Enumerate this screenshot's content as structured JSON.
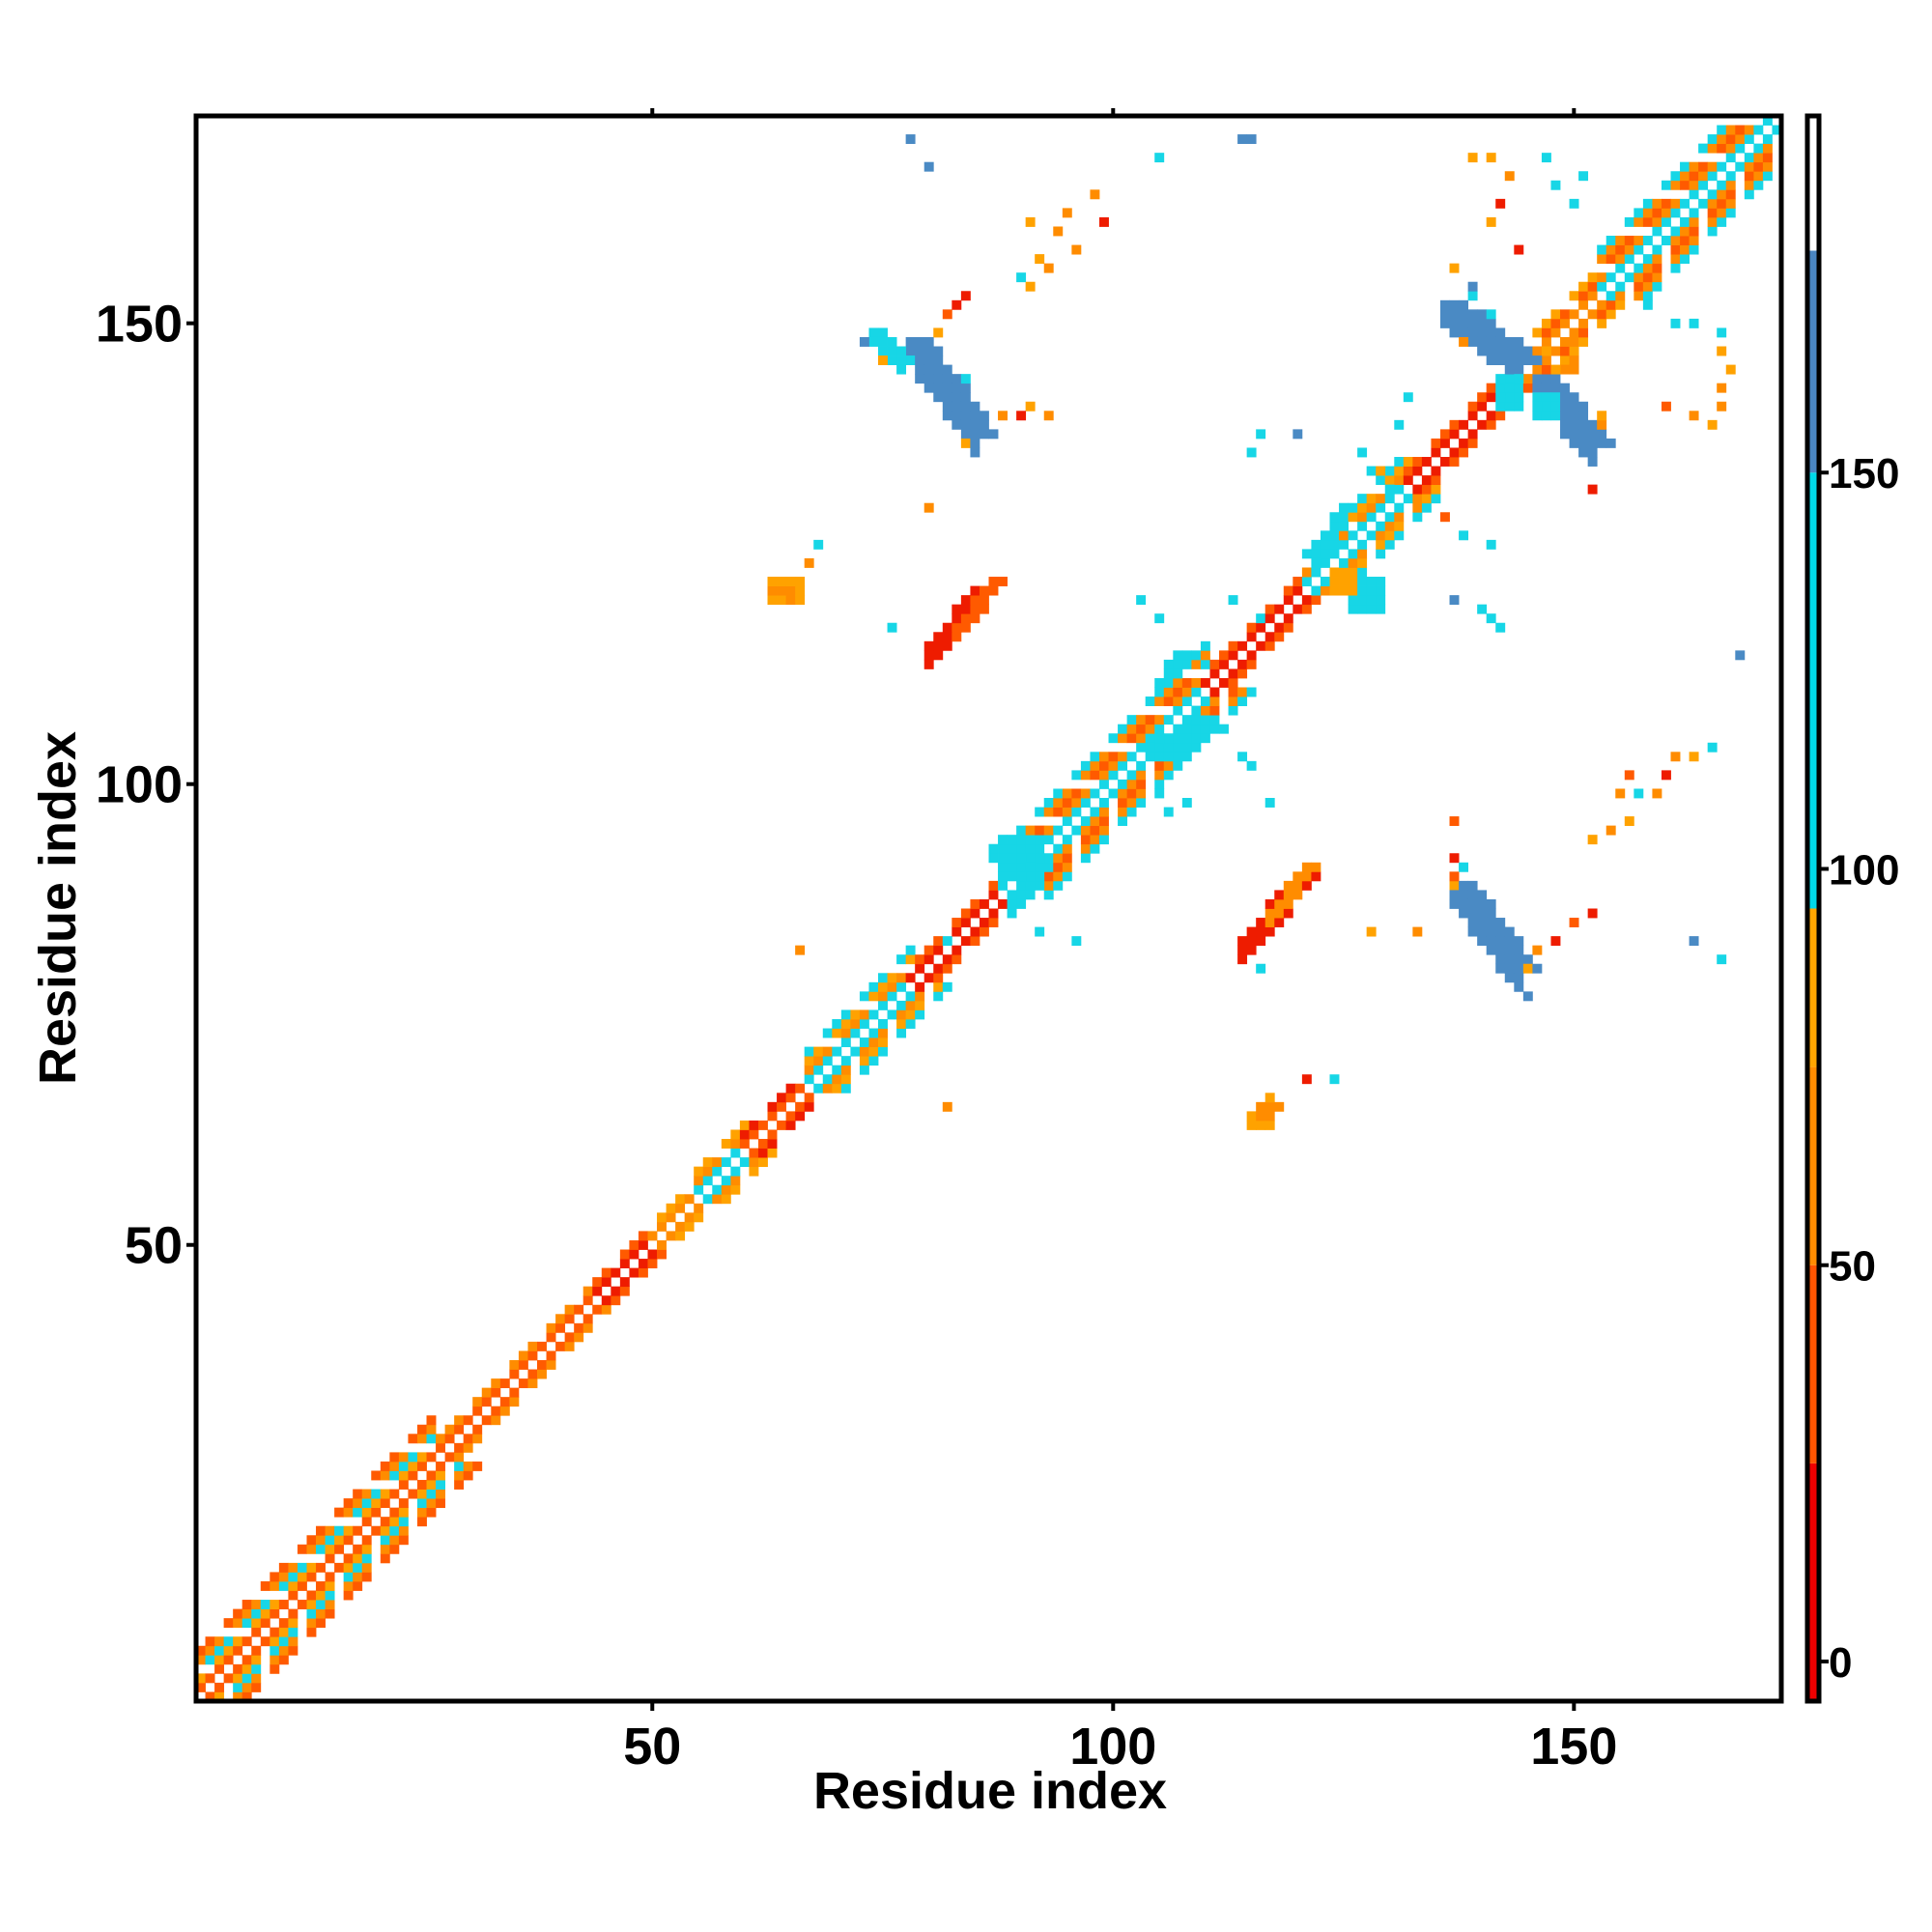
{
  "chart_data": {
    "type": "heatmap",
    "title": "",
    "xlabel": "Residue index",
    "ylabel": "Residue index",
    "xlim": [
      1,
      172
    ],
    "ylim": [
      1,
      172
    ],
    "xticks": [
      50,
      100,
      150
    ],
    "yticks": [
      50,
      100,
      150
    ],
    "colorbar": {
      "ticks": [
        0,
        50,
        100,
        150
      ],
      "range": [
        -5,
        195
      ],
      "bands": [
        {
          "from": -5,
          "to": 25,
          "color": "#ee0000"
        },
        {
          "from": 25,
          "to": 50,
          "color": "#ff5500"
        },
        {
          "from": 50,
          "to": 75,
          "color": "#ff8c00"
        },
        {
          "from": 75,
          "to": 95,
          "color": "#ffa500"
        },
        {
          "from": 95,
          "to": 150,
          "color": "#00d8e8"
        },
        {
          "from": 150,
          "to": 178,
          "color": "#4a86c2"
        },
        {
          "from": 178,
          "to": 195,
          "color": "#ffffff"
        }
      ]
    },
    "palette": {
      "red": "#ee1c00",
      "orange_red": "#ff5a00",
      "orange": "#ff8c00",
      "light_orange": "#ffa200",
      "cyan": "#17d6e6",
      "steel_blue": "#4a8ac4"
    },
    "diagonal_segments": [
      {
        "from": 1,
        "to": 26,
        "width": 5,
        "pattern": [
          "orange_red",
          "light_orange",
          "cyan",
          "orange",
          "orange_red"
        ]
      },
      {
        "from": 26,
        "to": 44,
        "width": 2,
        "pattern": [
          "orange_red",
          "orange"
        ]
      },
      {
        "from": 44,
        "to": 50,
        "width": 2,
        "pattern": [
          "red",
          "orange_red"
        ]
      },
      {
        "from": 50,
        "to": 55,
        "width": 2,
        "pattern": [
          "orange",
          "light_orange"
        ]
      },
      {
        "from": 55,
        "to": 60,
        "width": 3,
        "pattern": [
          "cyan",
          "orange",
          "light_orange"
        ]
      },
      {
        "from": 60,
        "to": 67,
        "width": 2,
        "pattern": [
          "orange_red",
          "red"
        ]
      },
      {
        "from": 67,
        "to": 78,
        "width": 4,
        "pattern": [
          "cyan",
          "orange",
          "light_orange",
          "cyan"
        ]
      },
      {
        "from": 78,
        "to": 88,
        "width": 2,
        "pattern": [
          "red",
          "orange_red"
        ]
      },
      {
        "from": 88,
        "to": 110,
        "width": 5,
        "pattern": [
          "cyan",
          "orange",
          "orange_red",
          "orange",
          "cyan"
        ]
      },
      {
        "from": 110,
        "to": 121,
        "width": 2,
        "pattern": [
          "red",
          "orange_red"
        ]
      },
      {
        "from": 121,
        "to": 132,
        "width": 4,
        "pattern": [
          "cyan",
          "orange",
          "light_orange",
          "cyan"
        ]
      },
      {
        "from": 132,
        "to": 144,
        "width": 2,
        "pattern": [
          "red",
          "orange_red"
        ]
      },
      {
        "from": 144,
        "to": 153,
        "width": 3,
        "pattern": [
          "orange",
          "orange_red",
          "light_orange"
        ]
      },
      {
        "from": 153,
        "to": 172,
        "width": 5,
        "pattern": [
          "cyan",
          "orange",
          "orange_red",
          "orange",
          "cyan"
        ]
      }
    ],
    "contact_strips": [
      {
        "start": [
          78,
          148
        ],
        "end": [
          85,
          138
        ],
        "width": 3,
        "color": "steel_blue"
      },
      {
        "start": [
          74,
          149
        ],
        "end": [
          77,
          146
        ],
        "width": 2,
        "color": "cyan"
      },
      {
        "start": [
          136,
          152
        ],
        "end": [
          144,
          146
        ],
        "width": 3,
        "color": "steel_blue"
      },
      {
        "start": [
          146,
          144
        ],
        "end": [
          152,
          137
        ],
        "width": 3,
        "color": "steel_blue"
      },
      {
        "start": [
          137,
          89
        ],
        "end": [
          144,
          80
        ],
        "width": 3,
        "color": "steel_blue"
      },
      {
        "start": [
          80,
          115
        ],
        "end": [
          85,
          121
        ],
        "width": 3,
        "color": "red"
      },
      {
        "start": [
          83,
          117
        ],
        "end": [
          87,
          122
        ],
        "width": 2,
        "color": "orange_red"
      },
      {
        "start": [
          114,
          83
        ],
        "end": [
          120,
          90
        ],
        "width": 3,
        "color": "red"
      },
      {
        "start": [
          117,
          86
        ],
        "end": [
          121,
          91
        ],
        "width": 2,
        "color": "orange"
      },
      {
        "start": [
          89,
          88
        ],
        "end": [
          91,
          92
        ],
        "width": 3,
        "color": "cyan"
      },
      {
        "start": [
          105,
          111
        ],
        "end": [
          107,
          114
        ],
        "width": 2,
        "color": "cyan"
      },
      {
        "start": [
          122,
          125
        ],
        "end": [
          125,
          130
        ],
        "width": 2,
        "color": "cyan"
      }
    ],
    "scatter_cells": [
      [
        78,
        170,
        "steel_blue"
      ],
      [
        80,
        167,
        "steel_blue"
      ],
      [
        114,
        170,
        "steel_blue"
      ],
      [
        115,
        170,
        "steel_blue"
      ],
      [
        98,
        164,
        "orange"
      ],
      [
        105,
        168,
        "cyan"
      ],
      [
        95,
        162,
        "orange"
      ],
      [
        99,
        161,
        "red"
      ],
      [
        91,
        161,
        "light_orange"
      ],
      [
        94,
        160,
        "orange"
      ],
      [
        92,
        157,
        "light_orange"
      ],
      [
        96,
        158,
        "orange"
      ],
      [
        90,
        155,
        "cyan"
      ],
      [
        93,
        156,
        "orange"
      ],
      [
        91,
        154,
        "light_orange"
      ],
      [
        84,
        153,
        "red"
      ],
      [
        83,
        152,
        "red"
      ],
      [
        82,
        151,
        "orange_red"
      ],
      [
        81,
        149,
        "light_orange"
      ],
      [
        73,
        148,
        "steel_blue"
      ],
      [
        75,
        146,
        "light_orange"
      ],
      [
        84,
        144,
        "cyan"
      ],
      [
        91,
        141,
        "light_orange"
      ],
      [
        90,
        140,
        "red"
      ],
      [
        93,
        140,
        "orange"
      ],
      [
        88,
        140,
        "orange"
      ],
      [
        84,
        137,
        "light_orange"
      ],
      [
        68,
        126,
        "cyan"
      ],
      [
        67,
        124,
        "orange"
      ],
      [
        63,
        121,
        "orange"
      ],
      [
        64,
        120,
        "light_orange"
      ],
      [
        65,
        120,
        "orange"
      ],
      [
        76,
        117,
        "cyan"
      ],
      [
        80,
        130,
        "orange"
      ],
      [
        103,
        120,
        "cyan"
      ],
      [
        105,
        118,
        "cyan"
      ],
      [
        66,
        82,
        "orange"
      ],
      [
        82,
        83,
        "cyan"
      ],
      [
        92,
        84,
        "cyan"
      ],
      [
        96,
        83,
        "cyan"
      ],
      [
        82,
        65,
        "orange"
      ],
      [
        117,
        66,
        "light_orange"
      ],
      [
        118,
        65,
        "orange"
      ],
      [
        121,
        68,
        "red"
      ],
      [
        124,
        68,
        "cyan"
      ],
      [
        128,
        84,
        "light_orange"
      ],
      [
        133,
        84,
        "orange"
      ],
      [
        116,
        80,
        "cyan"
      ],
      [
        137,
        92,
        "red"
      ],
      [
        137,
        90,
        "orange_red"
      ],
      [
        137,
        89,
        "light_orange"
      ],
      [
        138,
        91,
        "cyan"
      ],
      [
        137,
        96,
        "orange_red"
      ],
      [
        145,
        80,
        "light_orange"
      ],
      [
        146,
        82,
        "orange"
      ],
      [
        148,
        83,
        "red"
      ],
      [
        150,
        85,
        "orange_red"
      ],
      [
        152,
        86,
        "red"
      ],
      [
        145,
        77,
        "steel_blue"
      ],
      [
        163,
        83,
        "steel_blue"
      ],
      [
        166,
        81,
        "cyan"
      ],
      [
        152,
        94,
        "light_orange"
      ],
      [
        154,
        95,
        "orange"
      ],
      [
        156,
        96,
        "light_orange"
      ],
      [
        155,
        99,
        "orange"
      ],
      [
        156,
        101,
        "orange_red"
      ],
      [
        157,
        99,
        "cyan"
      ],
      [
        159,
        99,
        "orange"
      ],
      [
        160,
        101,
        "red"
      ],
      [
        161,
        103,
        "orange"
      ],
      [
        163,
        103,
        "light_orange"
      ],
      [
        165,
        104,
        "cyan"
      ],
      [
        168,
        114,
        "steel_blue"
      ],
      [
        140,
        119,
        "cyan"
      ],
      [
        141,
        118,
        "cyan"
      ],
      [
        137,
        120,
        "steel_blue"
      ],
      [
        142,
        117,
        "cyan"
      ],
      [
        136,
        129,
        "cyan"
      ],
      [
        138,
        127,
        "cyan"
      ],
      [
        141,
        126,
        "cyan"
      ],
      [
        115,
        136,
        "cyan"
      ],
      [
        116,
        138,
        "cyan"
      ],
      [
        120,
        138,
        "steel_blue"
      ],
      [
        127,
        136,
        "orange"
      ],
      [
        128,
        134,
        "cyan"
      ],
      [
        116,
        118,
        "cyan"
      ],
      [
        113,
        120,
        "cyan"
      ],
      [
        110,
        113,
        "cyan"
      ],
      [
        112,
        106,
        "cyan"
      ],
      [
        114,
        103,
        "cyan"
      ],
      [
        115,
        102,
        "cyan"
      ],
      [
        117,
        98,
        "cyan"
      ],
      [
        107,
        103,
        "cyan"
      ],
      [
        109,
        105,
        "cyan"
      ],
      [
        137,
        156,
        "light_orange"
      ],
      [
        139,
        153,
        "cyan"
      ],
      [
        138,
        148,
        "orange"
      ],
      [
        141,
        151,
        "cyan"
      ],
      [
        139,
        154,
        "steel_blue"
      ],
      [
        144,
        158,
        "red"
      ],
      [
        141,
        161,
        "light_orange"
      ],
      [
        142,
        163,
        "red"
      ],
      [
        143,
        166,
        "orange"
      ],
      [
        139,
        168,
        "light_orange"
      ],
      [
        141,
        168,
        "light_orange"
      ],
      [
        147,
        168,
        "cyan"
      ],
      [
        148,
        165,
        "cyan"
      ],
      [
        150,
        163,
        "cyan"
      ],
      [
        151,
        166,
        "cyan"
      ],
      [
        153,
        139,
        "orange"
      ],
      [
        153,
        140,
        "light_orange"
      ],
      [
        152,
        132,
        "red"
      ],
      [
        158,
        152,
        "cyan"
      ],
      [
        161,
        150,
        "cyan"
      ],
      [
        163,
        150,
        "cyan"
      ],
      [
        160,
        141,
        "orange_red"
      ],
      [
        163,
        140,
        "orange"
      ],
      [
        166,
        141,
        "orange"
      ],
      [
        166,
        143,
        "orange"
      ],
      [
        167,
        145,
        "light_orange"
      ],
      [
        166,
        149,
        "cyan"
      ],
      [
        166,
        147,
        "light_orange"
      ],
      [
        165,
        139,
        "light_orange"
      ],
      [
        147,
        147,
        "light_orange"
      ],
      [
        148,
        145,
        "light_orange"
      ],
      [
        149,
        146,
        "light_orange"
      ],
      [
        150,
        148,
        "orange"
      ],
      [
        132,
        142,
        "cyan"
      ],
      [
        131,
        139,
        "cyan"
      ],
      [
        127,
        136,
        "cyan"
      ],
      [
        129,
        134,
        "light_orange"
      ],
      [
        130,
        132,
        "cyan"
      ],
      [
        133,
        130,
        "orange"
      ],
      [
        134,
        130,
        "cyan"
      ],
      [
        136,
        129,
        "orange_red"
      ],
      [
        105,
        99,
        "cyan"
      ],
      [
        106,
        97,
        "cyan"
      ],
      [
        108,
        98,
        "cyan"
      ]
    ],
    "scatter_blocks": [
      [
        63,
        120,
        4,
        3,
        "light_orange"
      ],
      [
        63,
        121,
        3,
        1,
        "orange"
      ],
      [
        115,
        63,
        3,
        2,
        "light_orange"
      ],
      [
        116,
        64,
        2,
        2,
        "orange"
      ],
      [
        88,
        90,
        5,
        5,
        "cyan"
      ],
      [
        87,
        92,
        3,
        2,
        "cyan"
      ],
      [
        126,
        119,
        4,
        4,
        "cyan"
      ],
      [
        124,
        121,
        3,
        3,
        "light_orange"
      ],
      [
        104,
        103,
        5,
        3,
        "cyan"
      ],
      [
        107,
        104,
        3,
        2,
        "cyan"
      ],
      [
        108,
        106,
        4,
        2,
        "cyan"
      ],
      [
        142,
        141,
        3,
        4,
        "cyan"
      ],
      [
        146,
        140,
        3,
        3,
        "cyan"
      ],
      [
        149,
        145,
        2,
        2,
        "orange"
      ]
    ]
  }
}
